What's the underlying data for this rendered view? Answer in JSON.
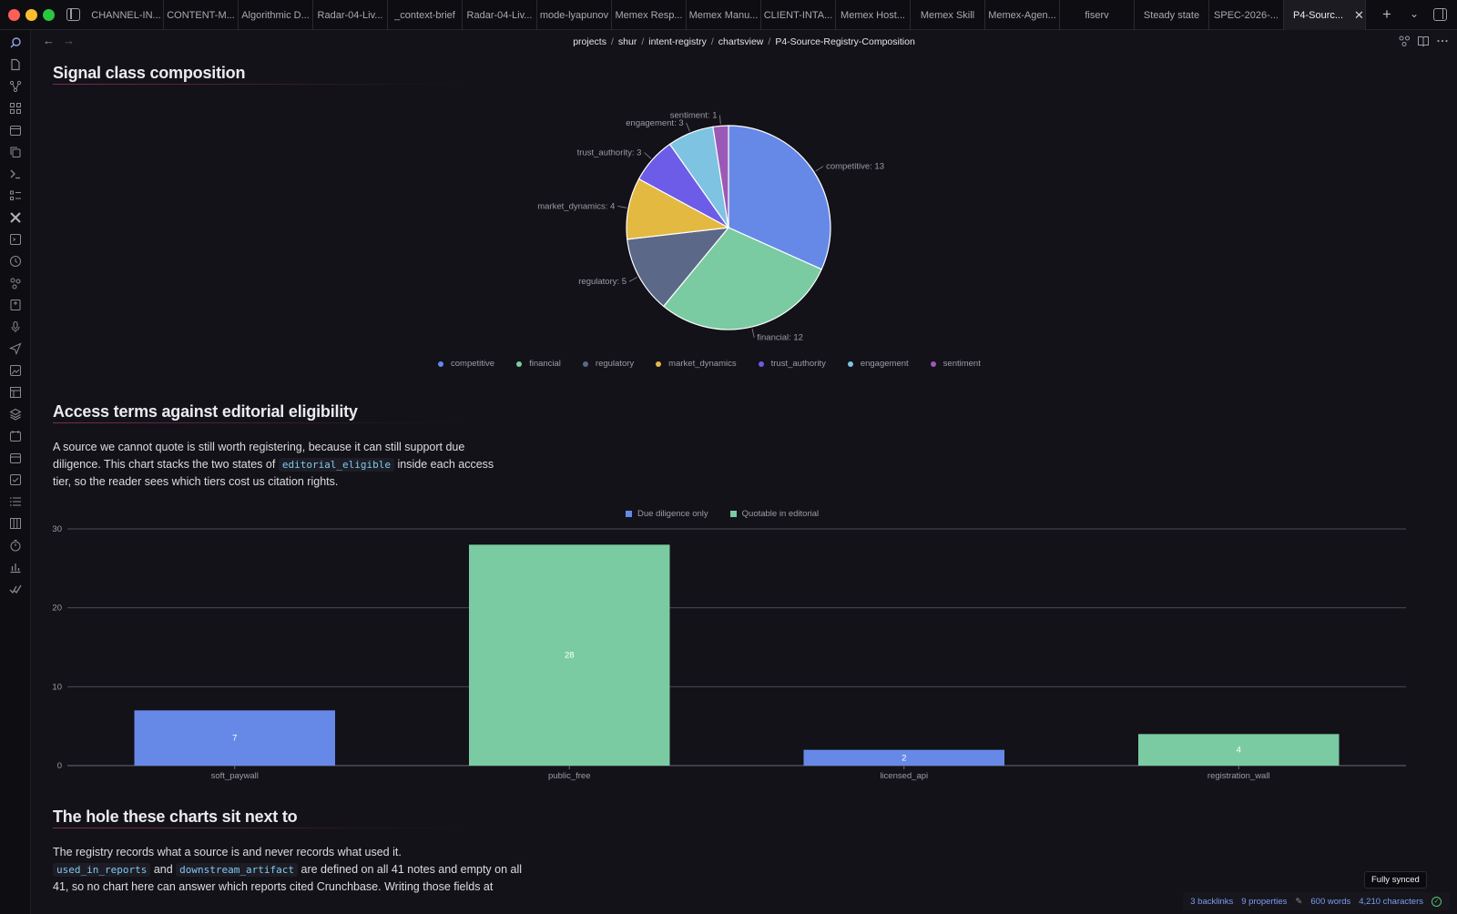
{
  "titlebar": {
    "tabs": [
      {
        "label": "CHANNEL-IN..."
      },
      {
        "label": "CONTENT-M..."
      },
      {
        "label": "Algorithmic D..."
      },
      {
        "label": "Radar-04-Liv..."
      },
      {
        "label": "_context-brief"
      },
      {
        "label": "Radar-04-Liv..."
      },
      {
        "label": "mode-lyapunov"
      },
      {
        "label": "Memex Resp..."
      },
      {
        "label": "Memex Manu..."
      },
      {
        "label": "CLIENT-INTA..."
      },
      {
        "label": "Memex Host..."
      },
      {
        "label": "Memex Skill"
      },
      {
        "label": "Memex-Agen..."
      },
      {
        "label": "fiserv"
      },
      {
        "label": "Steady state"
      },
      {
        "label": "SPEC-2026-..."
      }
    ],
    "active_tab": "P4-Sourc...",
    "add_tab": "+",
    "tab_list": "⌄",
    "close": "✕"
  },
  "nav": {
    "back": "←",
    "forward": "→",
    "breadcrumb": [
      "projects",
      "shur",
      "intent-registry",
      "chartsview",
      "P4-Source-Registry-Composition"
    ],
    "separator": "/"
  },
  "sections": {
    "signal_heading": "Signal class composition",
    "access_heading": "Access terms against editorial eligibility",
    "access_para_1": "A source we cannot quote is still worth registering, because it can still support due diligence. This chart stacks the two states of",
    "access_code": "editorial_eligible",
    "access_para_2": "inside each access tier, so the reader sees which tiers cost us citation rights.",
    "hole_heading": "The hole these charts sit next to",
    "hole_line_1": "The registry records what a source is and never records what used it.",
    "hole_code_1": "used_in_reports",
    "hole_and": "and",
    "hole_code_2": "downstream_artifact",
    "hole_line_2": "are defined on all 41 notes and empty on all",
    "hole_line_3": "41, so no chart here can answer which reports cited Crunchbase. Writing those fields at"
  },
  "chart_data": [
    {
      "type": "pie",
      "title": "",
      "legend_position": "bottom",
      "slices": [
        {
          "name": "competitive",
          "value": 13,
          "color": "#6689e8",
          "label": "competitive: 13"
        },
        {
          "name": "financial",
          "value": 12,
          "color": "#7acba1",
          "label": "financial: 12"
        },
        {
          "name": "regulatory",
          "value": 5,
          "color": "#5b6888",
          "label": "regulatory: 5"
        },
        {
          "name": "market_dynamics",
          "value": 4,
          "color": "#e4b942",
          "label": "market_dynamics: 4"
        },
        {
          "name": "trust_authority",
          "value": 3,
          "color": "#6c5ce7",
          "label": "trust_authority: 3"
        },
        {
          "name": "engagement",
          "value": 3,
          "color": "#7ec3e1",
          "label": "engagement: 3"
        },
        {
          "name": "sentiment",
          "value": 1,
          "color": "#9b59b6",
          "label": "sentiment: 1"
        }
      ]
    },
    {
      "type": "bar",
      "stacked": true,
      "title": "",
      "xlabel": "",
      "ylabel": "",
      "legend_position": "top",
      "categories": [
        "soft_paywall",
        "public_free",
        "licensed_api",
        "registration_wall"
      ],
      "series": [
        {
          "name": "Due diligence only",
          "color": "#6689e8",
          "values": [
            7,
            0,
            2,
            0
          ]
        },
        {
          "name": "Quotable in editorial",
          "color": "#7acba1",
          "values": [
            0,
            28,
            0,
            4
          ]
        }
      ],
      "ylim": [
        0,
        30
      ],
      "yticks": [
        "0",
        "10",
        "20",
        "30"
      ],
      "grid": true
    }
  ],
  "statusbar": {
    "backlinks": "3 backlinks",
    "properties": "9 properties",
    "words": "600 words",
    "characters": "4,210 characters",
    "sync_tooltip": "Fully synced"
  }
}
